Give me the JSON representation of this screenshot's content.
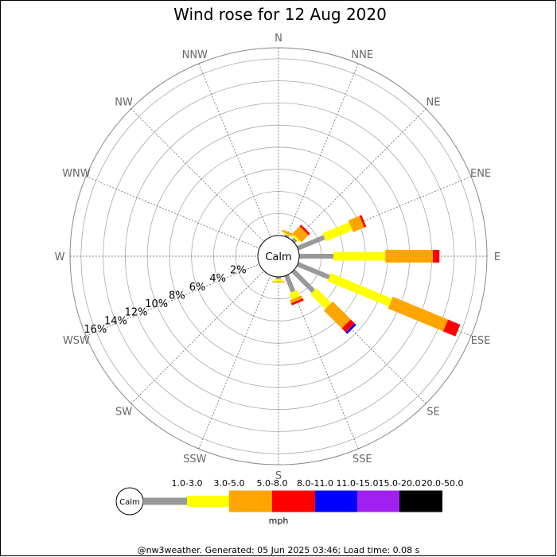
{
  "chart_data": {
    "type": "windrose",
    "title": "Wind rose for 12 Aug 2020",
    "directions": [
      "N",
      "NNE",
      "NE",
      "ENE",
      "E",
      "ESE",
      "SE",
      "SSE",
      "S",
      "SSW",
      "SW",
      "WSW",
      "W",
      "WNW",
      "NW",
      "NNW"
    ],
    "ring_labels": [
      "2%",
      "4%",
      "6%",
      "8%",
      "10%",
      "12%",
      "14%",
      "16%"
    ],
    "rmax_percent": 17,
    "calm_label": "Calm",
    "unit": "mph",
    "speed_bins": [
      {
        "label": "1.0-3.0",
        "color": "#999999"
      },
      {
        "label": "3.0-5.0",
        "color": "#ffff00"
      },
      {
        "label": "5.0-8.0",
        "color": "#ffa500"
      },
      {
        "label": "8.0-11.0",
        "color": "#ff0000"
      },
      {
        "label": "11.0-15.0",
        "color": "#0000ff"
      },
      {
        "label": "15.0-20.0",
        "color": "#a020f0"
      },
      {
        "label": "20.0-50.0",
        "color": "#000000"
      }
    ],
    "series": [
      {
        "dir": "N",
        "values": [
          0,
          0,
          0,
          0,
          0,
          0,
          0
        ]
      },
      {
        "dir": "NNE",
        "values": [
          0.2,
          0.1,
          0.2,
          0,
          0,
          0,
          0
        ]
      },
      {
        "dir": "NE",
        "values": [
          0.3,
          0.2,
          0.9,
          0.2,
          0,
          0,
          0
        ]
      },
      {
        "dir": "ENE",
        "values": [
          2.6,
          2.6,
          1.1,
          0.2,
          0,
          0,
          0
        ]
      },
      {
        "dir": "E",
        "values": [
          3.1,
          4.7,
          4.3,
          0.6,
          0,
          0,
          0
        ]
      },
      {
        "dir": "ESE",
        "values": [
          3.1,
          6.0,
          5.4,
          1.2,
          0,
          0,
          0
        ]
      },
      {
        "dir": "SE",
        "values": [
          2.6,
          1.9,
          2.3,
          0.5,
          0.2,
          0,
          0
        ]
      },
      {
        "dir": "SSE",
        "values": [
          1.6,
          0.6,
          0.3,
          0.2,
          0,
          0,
          0
        ]
      },
      {
        "dir": "S",
        "values": [
          0.2,
          0.2,
          0.1,
          0,
          0,
          0,
          0
        ]
      },
      {
        "dir": "SSW",
        "values": [
          0,
          0,
          0,
          0,
          0,
          0,
          0
        ]
      },
      {
        "dir": "SW",
        "values": [
          0,
          0,
          0,
          0,
          0,
          0,
          0
        ]
      },
      {
        "dir": "WSW",
        "values": [
          0,
          0,
          0,
          0,
          0,
          0,
          0
        ]
      },
      {
        "dir": "W",
        "values": [
          0,
          0,
          0,
          0,
          0,
          0,
          0
        ]
      },
      {
        "dir": "WNW",
        "values": [
          0,
          0,
          0,
          0,
          0,
          0,
          0
        ]
      },
      {
        "dir": "NW",
        "values": [
          0,
          0,
          0,
          0,
          0,
          0,
          0
        ]
      },
      {
        "dir": "NNW",
        "values": [
          0,
          0,
          0,
          0,
          0,
          0,
          0
        ]
      }
    ]
  },
  "footer": "@nw3weather. Generated: 05 Jun 2025 03:46; Load time: 0.08 s"
}
